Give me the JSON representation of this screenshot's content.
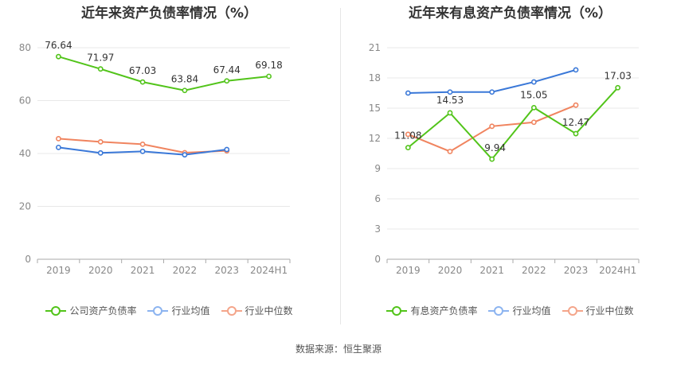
{
  "charts": [
    {
      "title": "近年来资产负债率情况（%）",
      "legend": [
        {
          "label": "公司资产负债率",
          "color": "#52c41a"
        },
        {
          "label": "行业均值",
          "color": "#8cb4f0"
        },
        {
          "label": "行业中位数",
          "color": "#f4a58a"
        }
      ]
    },
    {
      "title": "近年来有息资产负债率情况（%）",
      "legend": [
        {
          "label": "有息资产负债率",
          "color": "#52c41a"
        },
        {
          "label": "行业均值",
          "color": "#8cb4f0"
        },
        {
          "label": "行业中位数",
          "color": "#f4a58a"
        }
      ]
    }
  ],
  "source": "数据来源：恒生聚源",
  "chart_data": [
    {
      "type": "line",
      "title": "近年来资产负债率情况（%）",
      "categories": [
        "2019",
        "2020",
        "2021",
        "2022",
        "2023",
        "2024H1"
      ],
      "ylim": [
        0,
        80
      ],
      "yticks": [
        0,
        20,
        40,
        60,
        80
      ],
      "grid": true,
      "legend_position": "bottom",
      "series": [
        {
          "name": "公司资产负债率",
          "color": "#52c41a",
          "values": [
            76.64,
            71.97,
            67.03,
            63.84,
            67.44,
            69.18
          ],
          "labels": [
            "76.64",
            "71.97",
            "67.03",
            "63.84",
            "67.44",
            "69.18"
          ]
        },
        {
          "name": "行业均值",
          "color": "#3a78d8",
          "values": [
            42.3,
            40.2,
            40.8,
            39.5,
            41.5,
            null
          ]
        },
        {
          "name": "行业中位数",
          "color": "#f0845f",
          "values": [
            45.6,
            44.4,
            43.5,
            40.3,
            41.0,
            null
          ]
        }
      ]
    },
    {
      "type": "line",
      "title": "近年来有息资产负债率情况（%）",
      "categories": [
        "2019",
        "2020",
        "2021",
        "2022",
        "2023",
        "2024H1"
      ],
      "ylim": [
        0,
        21
      ],
      "yticks": [
        0,
        3,
        6,
        9,
        12,
        15,
        18,
        21
      ],
      "grid": true,
      "legend_position": "bottom",
      "series": [
        {
          "name": "有息资产负债率",
          "color": "#52c41a",
          "values": [
            11.08,
            14.53,
            9.94,
            15.05,
            12.47,
            17.03
          ],
          "labels": [
            "11.08",
            "14.53",
            "9.94",
            "15.05",
            "12.47",
            "17.03"
          ]
        },
        {
          "name": "行业均值",
          "color": "#3a78d8",
          "values": [
            16.5,
            16.6,
            16.6,
            17.6,
            18.8,
            null
          ]
        },
        {
          "name": "行业中位数",
          "color": "#f0845f",
          "values": [
            12.4,
            10.7,
            13.2,
            13.6,
            15.3,
            null
          ]
        }
      ]
    }
  ]
}
